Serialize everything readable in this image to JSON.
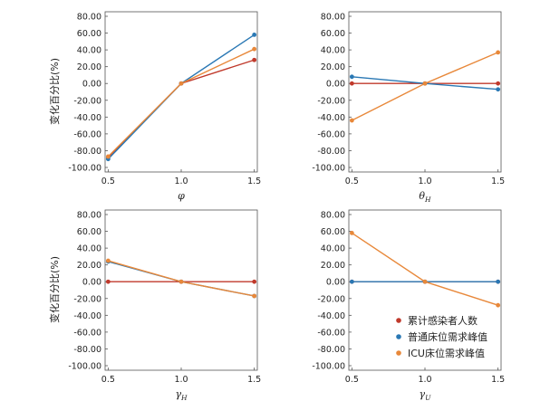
{
  "figure": {
    "series_names": [
      "累计感染者人数",
      "普通床位需求峰值",
      "ICU床位需求峰值"
    ],
    "colors": {
      "series_0": "#c0392b",
      "series_1": "#2a78b4",
      "series_2": "#e8883a"
    },
    "legend": {
      "placement": "lower-right",
      "entries": [
        "累计感染者人数",
        "普通床位需求峰值",
        "ICU床位需求峰值"
      ]
    }
  },
  "chart_data": [
    {
      "type": "line",
      "xlabel": "φ",
      "xlabel_sub": "",
      "ylabel": "变化百分比(%)",
      "x": [
        0.5,
        1.0,
        1.5
      ],
      "xticks": [
        "0.5",
        "1.0",
        "1.5"
      ],
      "ylim": [
        -100,
        80
      ],
      "yticks": [
        "80.00",
        "60.00",
        "40.00",
        "20.00",
        "0.00",
        "-20.00",
        "-40.00",
        "-60.00",
        "-80.00",
        "-100.00"
      ],
      "series": [
        {
          "name": "累计感染者人数",
          "values": [
            -88,
            0,
            28
          ]
        },
        {
          "name": "普通床位需求峰值",
          "values": [
            -90,
            0,
            58
          ]
        },
        {
          "name": "ICU床位需求峰值",
          "values": [
            -87,
            0,
            41
          ]
        }
      ]
    },
    {
      "type": "line",
      "xlabel": "θ",
      "xlabel_sub": "H",
      "ylabel": "",
      "x": [
        0.5,
        1.0,
        1.5
      ],
      "xticks": [
        "0.5",
        "1.0",
        "1.5"
      ],
      "ylim": [
        -100,
        80
      ],
      "yticks": [
        "80.00",
        "60.00",
        "40.00",
        "20.00",
        "0.00",
        "-20.00",
        "-40.00",
        "-60.00",
        "-80.00",
        "-100.00"
      ],
      "series": [
        {
          "name": "累计感染者人数",
          "values": [
            0,
            0,
            0
          ]
        },
        {
          "name": "普通床位需求峰值",
          "values": [
            8,
            0,
            -7
          ]
        },
        {
          "name": "ICU床位需求峰值",
          "values": [
            -44,
            0,
            37
          ]
        }
      ]
    },
    {
      "type": "line",
      "xlabel": "γ",
      "xlabel_sub": "H",
      "ylabel": "变化百分比(%)",
      "x": [
        0.5,
        1.0,
        1.5
      ],
      "xticks": [
        "0.5",
        "1.0",
        "1.5"
      ],
      "ylim": [
        -100,
        80
      ],
      "yticks": [
        "80.00",
        "60.00",
        "40.00",
        "20.00",
        "0.00",
        "-20.00",
        "-40.00",
        "-60.00",
        "-80.00",
        "-100.00"
      ],
      "series": [
        {
          "name": "累计感染者人数",
          "values": [
            0,
            0,
            0
          ]
        },
        {
          "name": "普通床位需求峰值",
          "values": [
            24,
            0,
            -17
          ]
        },
        {
          "name": "ICU床位需求峰值",
          "values": [
            25,
            0,
            -17
          ]
        }
      ]
    },
    {
      "type": "line",
      "xlabel": "γ",
      "xlabel_sub": "U",
      "ylabel": "",
      "x": [
        0.5,
        1.0,
        1.5
      ],
      "xticks": [
        "0.5",
        "1.0",
        "1.5"
      ],
      "ylim": [
        -100,
        80
      ],
      "yticks": [
        "80.00",
        "60.00",
        "40.00",
        "20.00",
        "0.00",
        "-20.00",
        "-40.00",
        "-60.00",
        "-80.00",
        "-100.00"
      ],
      "series": [
        {
          "name": "累计感染者人数",
          "values": [
            0,
            0,
            0
          ]
        },
        {
          "name": "普通床位需求峰值",
          "values": [
            0,
            0,
            0
          ]
        },
        {
          "name": "ICU床位需求峰值",
          "values": [
            58,
            0,
            -28
          ]
        }
      ]
    }
  ]
}
